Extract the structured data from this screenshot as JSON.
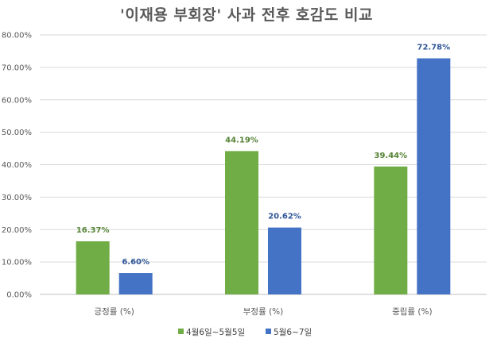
{
  "chart_data": {
    "type": "bar",
    "title": "'이재용 부회장' 사과 전후 호감도 비교",
    "categories": [
      "긍정률 (%)",
      "부정률 (%)",
      "중립률 (%)"
    ],
    "series": [
      {
        "name": "4월6일~5월5일",
        "color": "#70AD47",
        "values": [
          16.37,
          44.19,
          39.44
        ],
        "labels": [
          "16.37%",
          "44.19%",
          "39.44%"
        ]
      },
      {
        "name": "5월6~7일",
        "color": "#4472C4",
        "values": [
          6.6,
          20.62,
          72.78
        ],
        "labels": [
          "6.60%",
          "20.62%",
          "72.78%"
        ]
      }
    ],
    "ylim": [
      0,
      80
    ],
    "yticks": [
      0,
      10,
      20,
      30,
      40,
      50,
      60,
      70,
      80
    ],
    "ytick_labels": [
      "0.00%",
      "10.00%",
      "20.00%",
      "30.00%",
      "40.00%",
      "50.00%",
      "60.00%",
      "70.00%",
      "80.00%"
    ],
    "grid": true,
    "legend_position": "bottom"
  }
}
